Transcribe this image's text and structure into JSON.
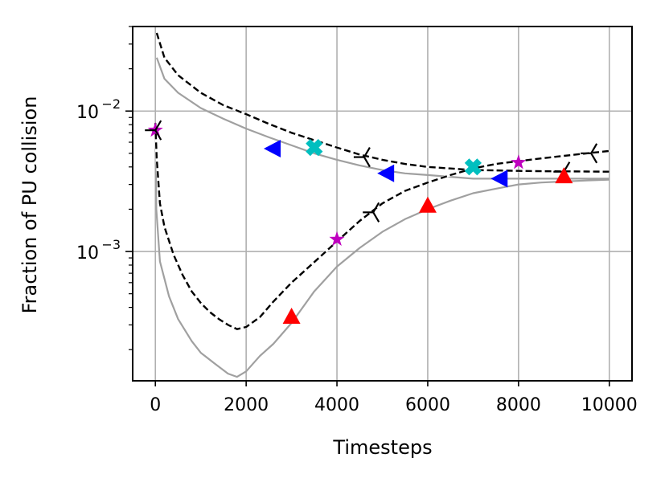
{
  "chart_data": {
    "type": "line",
    "title": "",
    "xlabel": "Timesteps",
    "ylabel": "Fraction of PU collision",
    "xlim": [
      -500,
      10500
    ],
    "ylim": [
      0.00012,
      0.04
    ],
    "yscale": "log",
    "grid": true,
    "x_ticks": [
      0,
      2000,
      4000,
      6000,
      8000,
      10000
    ],
    "x_tick_labels": [
      "0",
      "2000",
      "4000",
      "6000",
      "8000",
      "10000"
    ],
    "y_ticks": [
      0.01,
      0.001
    ],
    "y_tick_labels": [
      {
        "base": "10",
        "exp": "−2"
      },
      {
        "base": "10",
        "exp": "−3"
      }
    ],
    "series": [
      {
        "line": "dashed-black",
        "points": [
          [
            30,
            0.036
          ],
          [
            200,
            0.024
          ],
          [
            500,
            0.018
          ],
          [
            1000,
            0.0135
          ],
          [
            1500,
            0.011
          ],
          [
            2000,
            0.0095
          ],
          [
            2500,
            0.0081
          ],
          [
            3000,
            0.007
          ],
          [
            3500,
            0.0062
          ],
          [
            4000,
            0.0055
          ],
          [
            4500,
            0.0049
          ],
          [
            5000,
            0.0045
          ],
          [
            5500,
            0.0042
          ],
          [
            6000,
            0.004
          ],
          [
            6500,
            0.0039
          ],
          [
            7000,
            0.0038
          ],
          [
            7500,
            0.00378
          ],
          [
            8000,
            0.00375
          ],
          [
            8500,
            0.00373
          ],
          [
            9000,
            0.00372
          ],
          [
            9500,
            0.00371
          ],
          [
            10000,
            0.0037
          ]
        ]
      },
      {
        "line": "grey",
        "points": [
          [
            30,
            0.024
          ],
          [
            200,
            0.017
          ],
          [
            500,
            0.0135
          ],
          [
            1000,
            0.0105
          ],
          [
            1500,
            0.0088
          ],
          [
            2000,
            0.0075
          ],
          [
            2500,
            0.0065
          ],
          [
            3000,
            0.0057
          ],
          [
            3500,
            0.005
          ],
          [
            4000,
            0.0045
          ],
          [
            4500,
            0.0041
          ],
          [
            5000,
            0.0038
          ],
          [
            5500,
            0.0036
          ],
          [
            6000,
            0.0035
          ],
          [
            6500,
            0.0034
          ],
          [
            7000,
            0.0033
          ],
          [
            7500,
            0.0033
          ],
          [
            8000,
            0.0033
          ],
          [
            8500,
            0.0033
          ],
          [
            9000,
            0.0033
          ],
          [
            9500,
            0.0033
          ],
          [
            10000,
            0.0033
          ]
        ]
      },
      {
        "line": "dashed-black",
        "points": [
          [
            0,
            0.0082
          ],
          [
            30,
            0.0046
          ],
          [
            100,
            0.0022
          ],
          [
            200,
            0.0015
          ],
          [
            400,
            0.00095
          ],
          [
            600,
            0.00068
          ],
          [
            800,
            0.00052
          ],
          [
            1000,
            0.00043
          ],
          [
            1200,
            0.00037
          ],
          [
            1400,
            0.00033
          ],
          [
            1600,
            0.0003
          ],
          [
            1800,
            0.00028
          ],
          [
            2000,
            0.00029
          ],
          [
            2300,
            0.00034
          ],
          [
            2600,
            0.00044
          ],
          [
            3000,
            0.0006
          ],
          [
            3500,
            0.00084
          ],
          [
            4000,
            0.00118
          ],
          [
            4500,
            0.00165
          ],
          [
            5000,
            0.0022
          ],
          [
            5500,
            0.0027
          ],
          [
            6000,
            0.0031
          ],
          [
            6500,
            0.0035
          ],
          [
            7000,
            0.0039
          ],
          [
            7500,
            0.0042
          ],
          [
            8000,
            0.0044
          ],
          [
            8500,
            0.0046
          ],
          [
            9000,
            0.0048
          ],
          [
            9500,
            0.005
          ],
          [
            10000,
            0.0052
          ]
        ]
      },
      {
        "line": "grey",
        "points": [
          [
            0,
            0.0082
          ],
          [
            20,
            0.002
          ],
          [
            100,
            0.00085
          ],
          [
            300,
            0.00048
          ],
          [
            500,
            0.00033
          ],
          [
            800,
            0.00023
          ],
          [
            1000,
            0.00019
          ],
          [
            1300,
            0.00016
          ],
          [
            1600,
            0.000135
          ],
          [
            1800,
            0.000128
          ],
          [
            2000,
            0.00014
          ],
          [
            2300,
            0.00018
          ],
          [
            2600,
            0.00022
          ],
          [
            3000,
            0.00031
          ],
          [
            3500,
            0.00052
          ],
          [
            4000,
            0.00078
          ],
          [
            4500,
            0.00106
          ],
          [
            5000,
            0.00138
          ],
          [
            5500,
            0.0017
          ],
          [
            6000,
            0.002
          ],
          [
            6500,
            0.0023
          ],
          [
            7000,
            0.0026
          ],
          [
            7500,
            0.0028
          ],
          [
            8000,
            0.003
          ],
          [
            8500,
            0.0031
          ],
          [
            9000,
            0.00315
          ],
          [
            9500,
            0.0032
          ],
          [
            10000,
            0.00325
          ]
        ]
      }
    ],
    "markers": [
      {
        "shape": "star",
        "color": "#bf00bf",
        "points": [
          [
            0,
            0.0073
          ],
          [
            4000,
            0.00122
          ],
          [
            8000,
            0.0043
          ]
        ]
      },
      {
        "shape": "tri_left",
        "color": "#000000",
        "points": [
          [
            0,
            0.0073
          ],
          [
            4600,
            0.0047
          ],
          [
            4800,
            0.0019
          ],
          [
            9000,
            0.0037
          ],
          [
            9600,
            0.005
          ]
        ]
      },
      {
        "shape": "triangle_left",
        "color": "#0000ff",
        "points": [
          [
            2600,
            0.0054
          ],
          [
            5100,
            0.0036
          ],
          [
            7600,
            0.0033
          ]
        ]
      },
      {
        "shape": "x_filled",
        "color": "#00bfbf",
        "points": [
          [
            3500,
            0.0055
          ],
          [
            7000,
            0.004
          ]
        ]
      },
      {
        "shape": "triangle_up",
        "color": "#ff0000",
        "points": [
          [
            3000,
            0.00034
          ],
          [
            6000,
            0.0021
          ],
          [
            9000,
            0.0034
          ]
        ]
      }
    ]
  }
}
